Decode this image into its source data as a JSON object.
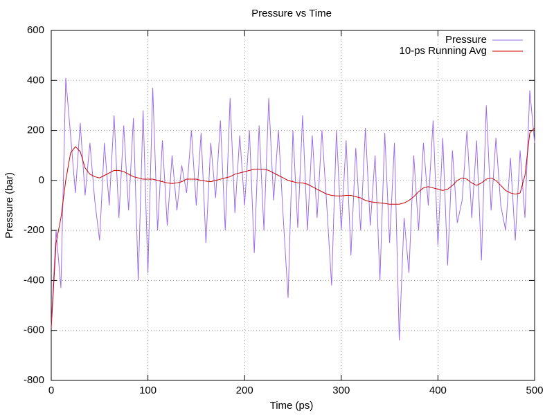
{
  "chart_data": {
    "type": "line",
    "title": "Pressure vs Time",
    "x_label": "Time (ps)",
    "y_label": "Pressure (bar)",
    "x": [
      0,
      5,
      10,
      15,
      20,
      25,
      30,
      35,
      40,
      45,
      50,
      55,
      60,
      65,
      70,
      75,
      80,
      85,
      90,
      95,
      100,
      105,
      110,
      115,
      120,
      125,
      130,
      135,
      140,
      145,
      150,
      155,
      160,
      165,
      170,
      175,
      180,
      185,
      190,
      195,
      200,
      205,
      210,
      215,
      220,
      225,
      230,
      235,
      240,
      245,
      250,
      255,
      260,
      265,
      270,
      275,
      280,
      285,
      290,
      295,
      300,
      305,
      310,
      315,
      320,
      325,
      330,
      335,
      340,
      345,
      350,
      355,
      360,
      365,
      370,
      375,
      380,
      385,
      390,
      395,
      400,
      405,
      410,
      415,
      420,
      425,
      430,
      435,
      440,
      445,
      450,
      455,
      460,
      465,
      470,
      475,
      480,
      485,
      490,
      495,
      500
    ],
    "series": [
      {
        "name": "Pressure",
        "color": "#9c6ce8",
        "values": [
          -580,
          -200,
          -430,
          410,
          180,
          -50,
          230,
          -60,
          150,
          -80,
          -240,
          150,
          -100,
          260,
          -150,
          220,
          -120,
          250,
          -400,
          280,
          -370,
          370,
          -200,
          160,
          -180,
          100,
          -120,
          60,
          -50,
          200,
          -100,
          190,
          -250,
          150,
          -70,
          240,
          -200,
          330,
          -130,
          180,
          -100,
          200,
          -290,
          220,
          -200,
          330,
          -80,
          200,
          -150,
          -470,
          200,
          -190,
          260,
          -200,
          180,
          -150,
          200,
          -100,
          -420,
          200,
          -200,
          160,
          -300,
          130,
          -200,
          210,
          -180,
          100,
          -400,
          190,
          -250,
          150,
          -640,
          -150,
          -370,
          100,
          -200,
          150,
          -100,
          240,
          -260,
          170,
          -340,
          120,
          -170,
          -80,
          200,
          -150,
          160,
          -320,
          300,
          -120,
          170,
          -100,
          -200,
          90,
          -240,
          120,
          -150,
          360,
          150
        ]
      },
      {
        "name": "10-ps Running Avg",
        "color": "#c80000",
        "values": [
          -590,
          -250,
          -150,
          0,
          110,
          135,
          115,
          50,
          25,
          15,
          10,
          20,
          30,
          40,
          40,
          35,
          25,
          15,
          10,
          5,
          5,
          5,
          0,
          -5,
          -10,
          -12,
          -10,
          -5,
          5,
          5,
          5,
          0,
          -3,
          -5,
          0,
          5,
          10,
          15,
          25,
          30,
          35,
          40,
          45,
          45,
          45,
          40,
          30,
          20,
          10,
          0,
          -5,
          -10,
          -10,
          -15,
          -25,
          -35,
          -45,
          -55,
          -60,
          -62,
          -62,
          -60,
          -60,
          -65,
          -70,
          -80,
          -85,
          -88,
          -90,
          -92,
          -95,
          -95,
          -95,
          -90,
          -80,
          -65,
          -45,
          -30,
          -25,
          -30,
          -35,
          -40,
          -35,
          -20,
          0,
          10,
          5,
          -10,
          -20,
          -10,
          5,
          10,
          0,
          -20,
          -40,
          -50,
          -55,
          -50,
          20,
          190,
          210
        ]
      }
    ],
    "xlim": [
      0,
      500
    ],
    "xticks": [
      0,
      100,
      200,
      300,
      400,
      500
    ],
    "ylim": [
      -800,
      600
    ],
    "yticks": [
      -800,
      -600,
      -400,
      -200,
      0,
      200,
      400,
      600
    ],
    "grid": true,
    "legend": "top-right"
  }
}
